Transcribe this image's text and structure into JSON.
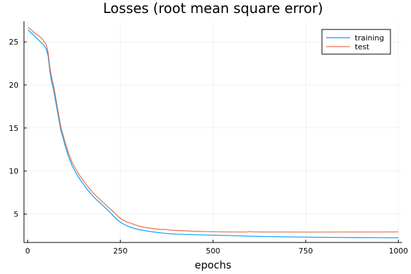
{
  "chart_data": {
    "type": "line",
    "title": "Losses (root mean square error)",
    "xlabel": "epochs",
    "ylabel": "",
    "xlim": [
      -10,
      1010
    ],
    "ylim": [
      1.7,
      27.4
    ],
    "xticks": [
      0,
      250,
      500,
      750,
      1000
    ],
    "yticks": [
      5,
      10,
      15,
      20,
      25
    ],
    "grid": true,
    "legend_position": "top-right",
    "series": [
      {
        "name": "training",
        "color": "#009af9",
        "x": [
          1,
          10,
          20,
          30,
          40,
          50,
          55,
          60,
          65,
          70,
          75,
          80,
          85,
          90,
          95,
          100,
          110,
          120,
          130,
          140,
          150,
          160,
          170,
          180,
          190,
          200,
          210,
          220,
          230,
          240,
          250,
          260,
          270,
          280,
          290,
          300,
          320,
          340,
          360,
          380,
          400,
          450,
          500,
          550,
          600,
          650,
          700,
          750,
          800,
          850,
          900,
          950,
          1000
        ],
        "y": [
          26.4,
          26.0,
          25.6,
          25.2,
          24.8,
          24.2,
          23.4,
          21.6,
          20.3,
          19.4,
          18.2,
          17.0,
          15.8,
          14.6,
          13.9,
          13.1,
          11.7,
          10.6,
          9.8,
          9.1,
          8.5,
          7.9,
          7.4,
          6.9,
          6.5,
          6.1,
          5.7,
          5.3,
          4.85,
          4.4,
          4.05,
          3.8,
          3.6,
          3.45,
          3.3,
          3.2,
          3.05,
          2.92,
          2.82,
          2.72,
          2.67,
          2.6,
          2.55,
          2.5,
          2.43,
          2.38,
          2.35,
          2.32,
          2.3,
          2.28,
          2.27,
          2.26,
          2.25
        ]
      },
      {
        "name": "test",
        "color": "#e26f46",
        "x": [
          1,
          10,
          20,
          30,
          40,
          50,
          55,
          60,
          65,
          70,
          75,
          80,
          85,
          90,
          95,
          100,
          110,
          120,
          130,
          140,
          150,
          160,
          170,
          180,
          190,
          200,
          210,
          220,
          230,
          240,
          250,
          260,
          270,
          280,
          290,
          300,
          320,
          340,
          360,
          370,
          380,
          400,
          450,
          500,
          550,
          590,
          600,
          610,
          650,
          700,
          750,
          800,
          850,
          900,
          950,
          1000
        ],
        "y": [
          26.7,
          26.4,
          26.0,
          25.7,
          25.3,
          24.7,
          23.8,
          22.0,
          20.8,
          19.9,
          18.7,
          17.4,
          16.2,
          15.0,
          14.3,
          13.5,
          12.1,
          11.0,
          10.2,
          9.5,
          8.9,
          8.3,
          7.8,
          7.3,
          6.9,
          6.5,
          6.1,
          5.7,
          5.3,
          4.9,
          4.5,
          4.25,
          4.05,
          3.9,
          3.75,
          3.6,
          3.42,
          3.3,
          3.2,
          3.23,
          3.15,
          3.1,
          3.0,
          2.95,
          2.92,
          2.92,
          2.97,
          2.93,
          2.92,
          2.92,
          2.91,
          2.91,
          2.92,
          2.92,
          2.92,
          2.93
        ]
      }
    ]
  }
}
